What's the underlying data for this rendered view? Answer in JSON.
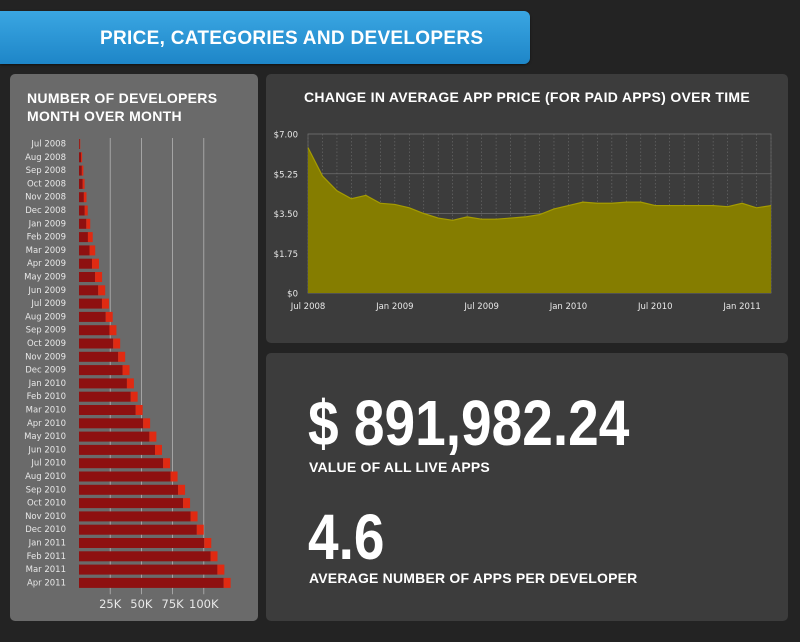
{
  "banner": {
    "title": "PRICE, CATEGORIES AND DEVELOPERS"
  },
  "bar_panel": {
    "title": "NUMBER OF DEVELOPERS MONTH OVER MONTH"
  },
  "line_panel": {
    "title": "CHANGE IN AVERAGE APP PRICE (FOR PAID APPS) OVER TIME"
  },
  "stats": [
    {
      "value": "$ 891,982.24",
      "label": "VALUE OF ALL LIVE APPS"
    },
    {
      "value": "4.6",
      "label": "AVERAGE NUMBER OF APPS PER DEVELOPER"
    }
  ],
  "colors": {
    "bar_main": "#8e1010",
    "bar_cap": "#e02a12",
    "area_fill": "#857d00",
    "area_line": "#a59c00"
  },
  "chart_data": [
    {
      "type": "bar",
      "orientation": "horizontal",
      "title": "NUMBER OF DEVELOPERS MONTH OVER MONTH",
      "categories": [
        "Jul 2008",
        "Aug 2008",
        "Sep 2008",
        "Oct 2008",
        "Nov 2008",
        "Dec 2008",
        "Jan 2009",
        "Feb 2009",
        "Mar 2009",
        "Apr 2009",
        "May 2009",
        "Jun 2009",
        "Jul 2009",
        "Aug 2009",
        "Sep 2009",
        "Oct 2009",
        "Nov 2009",
        "Dec 2009",
        "Jan 2010",
        "Feb 2010",
        "Mar 2010",
        "Apr 2010",
        "May 2010",
        "Jun 2010",
        "Jul 2010",
        "Aug 2010",
        "Sep 2010",
        "Oct 2010",
        "Nov 2010",
        "Dec 2010",
        "Jan 2011",
        "Feb 2011",
        "Mar 2011",
        "Apr 2011"
      ],
      "values": [
        1000,
        2500,
        3500,
        4500,
        6000,
        7000,
        9000,
        11000,
        13000,
        16000,
        18500,
        21000,
        24000,
        27000,
        30000,
        33000,
        37000,
        40500,
        44000,
        47000,
        51000,
        57000,
        62000,
        66500,
        73000,
        79000,
        85000,
        89000,
        95000,
        100000,
        106000,
        111000,
        116500,
        121500
      ],
      "xticks": [
        25000,
        50000,
        75000,
        100000
      ],
      "xtick_labels": [
        "25K",
        "50K",
        "75K",
        "100K"
      ],
      "xlim": [
        0,
        125000
      ],
      "grid": true
    },
    {
      "type": "area",
      "title": "CHANGE IN AVERAGE APP PRICE (FOR PAID APPS) OVER TIME",
      "x": [
        "2008-07",
        "2008-08",
        "2008-09",
        "2008-10",
        "2008-11",
        "2008-12",
        "2009-01",
        "2009-02",
        "2009-03",
        "2009-04",
        "2009-05",
        "2009-06",
        "2009-07",
        "2009-08",
        "2009-09",
        "2009-10",
        "2009-11",
        "2009-12",
        "2010-01",
        "2010-02",
        "2010-03",
        "2010-04",
        "2010-05",
        "2010-06",
        "2010-07",
        "2010-08",
        "2010-09",
        "2010-10",
        "2010-11",
        "2010-12",
        "2011-01",
        "2011-02",
        "2011-03"
      ],
      "y": [
        6.4,
        5.15,
        4.5,
        4.15,
        4.3,
        3.95,
        3.9,
        3.75,
        3.5,
        3.3,
        3.2,
        3.35,
        3.25,
        3.25,
        3.3,
        3.35,
        3.45,
        3.7,
        3.85,
        4.0,
        3.95,
        3.95,
        4.0,
        4.0,
        3.85,
        3.85,
        3.85,
        3.85,
        3.85,
        3.8,
        3.95,
        3.75,
        3.85
      ],
      "yticks": [
        0,
        1.75,
        3.5,
        5.25,
        7
      ],
      "ytick_labels": [
        "$0",
        "$1.75",
        "$3.50",
        "$5.25",
        "$7.00"
      ],
      "xtick_labels": [
        "Jul 2008",
        "Jan 2009",
        "Jul 2009",
        "Jan 2010",
        "Jul 2010",
        "Jan 2011"
      ],
      "ylim": [
        0,
        7
      ],
      "grid": true
    }
  ]
}
